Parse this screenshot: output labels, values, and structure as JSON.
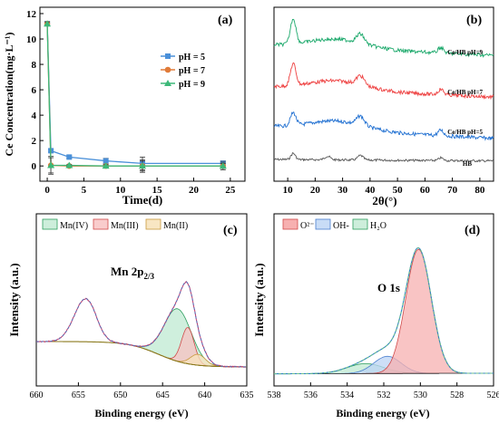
{
  "chart_data": [
    {
      "panel": "(a)",
      "type": "line",
      "xlabel": "Time(d)",
      "ylabel": "Ce Concentration(mg·L⁻¹)",
      "xlim": [
        -1,
        27
      ],
      "ylim": [
        -1.2,
        12.5
      ],
      "xticks": [
        "0",
        "5",
        "10",
        "15",
        "20",
        "25"
      ],
      "yticks": [
        "0",
        "2",
        "4",
        "6",
        "8",
        "10",
        "12"
      ],
      "legend_position": "right-middle",
      "series": [
        {
          "name": "pH = 5",
          "color": "#4a90d9",
          "marker": "square",
          "x": [
            0,
            0.5,
            3,
            8,
            13,
            24
          ],
          "y": [
            11.2,
            1.2,
            0.7,
            0.4,
            0.2,
            0.2
          ],
          "err": [
            0.15,
            0.1,
            0.1,
            0.2,
            0.5,
            0.2
          ]
        },
        {
          "name": "pH = 7",
          "color": "#e07b39",
          "marker": "circle",
          "x": [
            0,
            0.5,
            3,
            8,
            13,
            24
          ],
          "y": [
            11.2,
            0.05,
            0.0,
            0.0,
            0.0,
            0.0
          ],
          "err": [
            0.15,
            0.7,
            0.05,
            0.1,
            0.5,
            0.3
          ]
        },
        {
          "name": "pH = 9",
          "color": "#3cb878",
          "marker": "triangle",
          "x": [
            0,
            0.5,
            3,
            8,
            13,
            24
          ],
          "y": [
            11.2,
            0.05,
            0.05,
            0.0,
            0.0,
            0.0
          ],
          "err": [
            0.15,
            0.6,
            0.05,
            0.1,
            0.4,
            0.2
          ]
        }
      ]
    },
    {
      "panel": "(b)",
      "type": "line",
      "xlabel": "2θ(°)",
      "xlim": [
        5,
        85
      ],
      "xticks": [
        "10",
        "20",
        "30",
        "40",
        "50",
        "60",
        "70",
        "80"
      ],
      "series": [
        {
          "name": "HB",
          "color": "#555555"
        },
        {
          "name": "Ce/HB  pH=5",
          "color": "#1f6fd1"
        },
        {
          "name": "Ce/HB  pH=7",
          "color": "#ee4040"
        },
        {
          "name": "Ce/HB  pH=9",
          "color": "#1aa86a"
        }
      ]
    },
    {
      "panel": "(c)",
      "type": "line",
      "xlabel": "Binding energy (eV)",
      "ylabel": "Intensity (a.u.)",
      "xlim": [
        660,
        635
      ],
      "xticks": [
        "660",
        "655",
        "650",
        "645",
        "640",
        "635"
      ],
      "annotation": "Mn 2p",
      "annotation_sub": "2/3",
      "legend": [
        {
          "name": "Mn(IV)",
          "color": "#8fd6ad"
        },
        {
          "name": "Mn(III)",
          "color": "#f28a8a"
        },
        {
          "name": "Mn(II)",
          "color": "#f2cf8a"
        }
      ]
    },
    {
      "panel": "(d)",
      "type": "line",
      "xlabel": "Binding energy (eV)",
      "ylabel": "Intensity (a.u.)",
      "xlim": [
        538,
        526
      ],
      "xticks": [
        "538",
        "536",
        "534",
        "532",
        "530",
        "528",
        "526"
      ],
      "annotation": "O 1s",
      "legend": [
        {
          "name": "O²⁻",
          "color": "#f06a6a"
        },
        {
          "name": "OH-",
          "color": "#7aa9e8"
        },
        {
          "name": "H₂O",
          "color": "#8fd6ad"
        }
      ]
    }
  ]
}
